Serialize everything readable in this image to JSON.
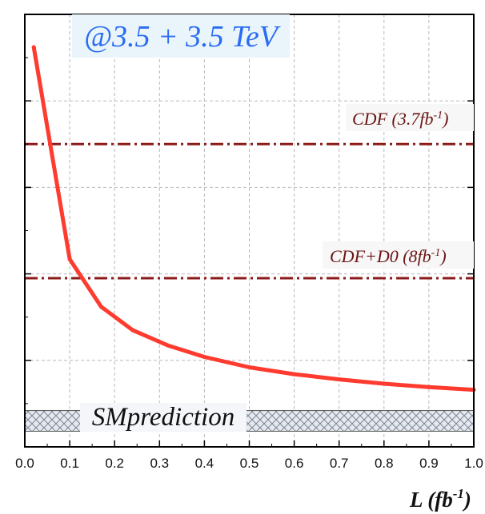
{
  "chart_data": {
    "type": "line",
    "title": "@3.5 + 3.5 TeV",
    "xlabel": "L (fb⁻¹)",
    "xlabel_parts": {
      "main": "L (fb",
      "sup": "-1",
      "close": ")"
    },
    "ylabel": "",
    "xlim": [
      0,
      1.0
    ],
    "ylim": [
      0,
      5
    ],
    "x_ticks": [
      "0.0",
      "0.1",
      "0.2",
      "0.3",
      "0.4",
      "0.5",
      "0.6",
      "0.7",
      "0.8",
      "0.9",
      "1.0"
    ],
    "grid": true,
    "series": [
      {
        "color": "#ff3b2f",
        "x": [
          0.02,
          0.1,
          0.17,
          0.24,
          0.32,
          0.4,
          0.5,
          0.6,
          0.7,
          0.8,
          0.9,
          1.0
        ],
        "y": [
          4.62,
          2.17,
          1.62,
          1.35,
          1.17,
          1.04,
          0.92,
          0.84,
          0.78,
          0.73,
          0.69,
          0.66
        ]
      }
    ],
    "reference_lines": [
      {
        "label": "CDF (3.7fb⁻¹)",
        "label_main": "CDF (3.7fb",
        "label_sup": "-1",
        "label_close": ")",
        "y": 3.5,
        "color": "#8b1a1a"
      },
      {
        "label": "CDF+D0 (8fb⁻¹)",
        "label_main": "CDF+D0 (8fb",
        "label_sup": "-1",
        "label_close": ")",
        "y": 1.95,
        "color": "#8b1a1a"
      }
    ],
    "band": {
      "label": "SMprediction",
      "y_low": 0.18,
      "y_high": 0.42,
      "color": "#9aa6b8"
    }
  }
}
